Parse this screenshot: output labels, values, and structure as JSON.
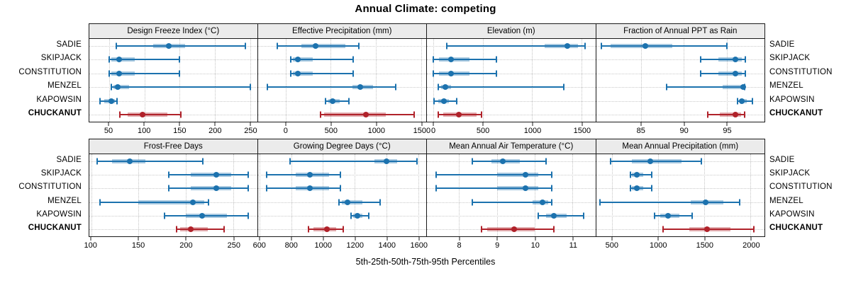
{
  "title": "Annual Climate: competing",
  "caption": "5th-25th-50th-75th-95th Percentiles",
  "sites": [
    "SADIE",
    "SKIPJACK",
    "CONSTITUTION",
    "MENZEL",
    "KAPOWSIN",
    "CHUCKANUT"
  ],
  "highlight_site": "CHUCKANUT",
  "colors": {
    "series_blue": "#1c72ae",
    "series_blue_band": "rgba(28,114,174,0.38)",
    "highlight_red": "#b0222a",
    "highlight_red_band": "rgba(176,34,42,0.38)",
    "strip_bg": "#ebebeb",
    "panel_border": "#1a1a1a",
    "grid": "#c6c6c6"
  },
  "chart_data": {
    "type": "scatter",
    "variant": "dot-whisker five-number summary (5th-25th-50th-75th-95th percentiles) trellis, 2 rows x 4 columns",
    "percentiles": [
      5,
      25,
      50,
      75,
      95
    ],
    "legend_position": "none",
    "grid": "dotted",
    "panels": [
      {
        "title": "Design Freeze Index (°C)",
        "row": 0,
        "ticks": [
          50,
          100,
          150,
          200,
          250
        ],
        "domain": [
          22,
          260
        ],
        "series": {
          "SADIE": [
            60,
            113,
            135,
            158,
            243
          ],
          "SKIPJACK": [
            50,
            53,
            64,
            86,
            150
          ],
          "CONSTITUTION": [
            50,
            53,
            64,
            86,
            150
          ],
          "MENZEL": [
            53,
            56,
            62,
            78,
            250
          ],
          "KAPOWSIN": [
            37,
            43,
            53,
            58,
            61
          ],
          "CHUCKANUT": [
            65,
            76,
            97,
            133,
            152
          ]
        }
      },
      {
        "title": "Effective Precipitation (mm)",
        "row": 0,
        "ticks": [
          0,
          500,
          1000,
          1500
        ],
        "domain": [
          -307,
          1556
        ],
        "series": {
          "SADIE": [
            -90,
            175,
            330,
            660,
            810
          ],
          "SKIPJACK": [
            55,
            85,
            140,
            300,
            750
          ],
          "CONSTITUTION": [
            55,
            85,
            140,
            300,
            750
          ],
          "MENZEL": [
            -200,
            740,
            830,
            970,
            1215
          ],
          "KAPOWSIN": [
            445,
            470,
            520,
            600,
            700
          ],
          "CHUCKANUT": [
            390,
            430,
            890,
            1110,
            1420
          ]
        }
      },
      {
        "title": "Elevation (m)",
        "row": 0,
        "ticks": [
          0,
          500,
          1000,
          1500
        ],
        "domain": [
          -65,
          1640
        ],
        "series": {
          "SADIE": [
            135,
            1125,
            1360,
            1465,
            1535
          ],
          "SKIPJACK": [
            0,
            60,
            180,
            365,
            640
          ],
          "CONSTITUTION": [
            0,
            60,
            180,
            365,
            640
          ],
          "MENZEL": [
            50,
            75,
            120,
            180,
            1320
          ],
          "KAPOWSIN": [
            10,
            50,
            105,
            155,
            235
          ],
          "CHUCKANUT": [
            48,
            100,
            255,
            440,
            490
          ]
        }
      },
      {
        "title": "Fraction of Annual PPT as Rain",
        "row": 0,
        "ticks": [
          85,
          90,
          95
        ],
        "domain": [
          79.8,
          99.4
        ],
        "series": {
          "SADIE": [
            80.4,
            81.5,
            85.5,
            88.7,
            95
          ],
          "SKIPJACK": [
            92,
            94,
            96,
            96.8,
            97.2
          ],
          "CONSTITUTION": [
            92,
            94,
            96,
            96.8,
            97.2
          ],
          "MENZEL": [
            88,
            94.5,
            96.9,
            97.0,
            97.1
          ],
          "KAPOWSIN": [
            96.3,
            96.5,
            96.8,
            97.3,
            98
          ],
          "CHUCKANUT": [
            92.8,
            94.2,
            96,
            96.7,
            97.1
          ]
        }
      },
      {
        "title": "Frost-Free Days",
        "row": 1,
        "ticks": [
          100,
          150,
          200,
          250
        ],
        "domain": [
          98,
          275
        ],
        "series": {
          "SADIE": [
            106,
            122,
            141,
            157,
            218
          ],
          "SKIPJACK": [
            182,
            205,
            232,
            248,
            266
          ],
          "CONSTITUTION": [
            182,
            205,
            232,
            248,
            266
          ],
          "MENZEL": [
            109,
            150,
            207,
            219,
            224
          ],
          "KAPOWSIN": [
            177,
            200,
            217,
            243,
            266
          ],
          "CHUCKANUT": [
            190,
            194,
            205,
            223,
            240
          ]
        }
      },
      {
        "title": "Growing Degree Days (°C)",
        "row": 1,
        "ticks": [
          600,
          800,
          1000,
          1200,
          1400,
          1600
        ],
        "domain": [
          590,
          1650
        ],
        "series": {
          "SADIE": [
            795,
            1325,
            1400,
            1465,
            1590
          ],
          "SKIPJACK": [
            645,
            830,
            920,
            1040,
            1110
          ],
          "CONSTITUTION": [
            645,
            830,
            920,
            1040,
            1110
          ],
          "MENZEL": [
            1100,
            1120,
            1155,
            1250,
            1360
          ],
          "KAPOWSIN": [
            1175,
            1190,
            1215,
            1250,
            1290
          ],
          "CHUCKANUT": [
            910,
            940,
            1025,
            1085,
            1130
          ]
        }
      },
      {
        "title": "Mean Annual Air Temperature (°C)",
        "row": 1,
        "ticks": [
          8,
          9,
          10,
          11
        ],
        "domain": [
          7.15,
          11.6
        ],
        "series": {
          "SADIE": [
            8.35,
            8.85,
            9.15,
            9.6,
            10.3
          ],
          "SKIPJACK": [
            7.4,
            9.0,
            9.75,
            10.1,
            10.45
          ],
          "CONSTITUTION": [
            7.4,
            9.0,
            9.75,
            10.1,
            10.45
          ],
          "MENZEL": [
            8.35,
            9.95,
            10.2,
            10.35,
            10.45
          ],
          "KAPOWSIN": [
            10.1,
            10.3,
            10.5,
            10.85,
            11.3
          ],
          "CHUCKANUT": [
            8.6,
            8.75,
            9.45,
            10.0,
            10.5
          ]
        }
      },
      {
        "title": "Mean Annual Precipitation (mm)",
        "row": 1,
        "ticks": [
          500,
          1000,
          1500,
          2000
        ],
        "domain": [
          330,
          2150
        ],
        "series": {
          "SADIE": [
            490,
            720,
            915,
            1250,
            1470
          ],
          "SKIPJACK": [
            705,
            720,
            770,
            840,
            935
          ],
          "CONSTITUTION": [
            705,
            720,
            770,
            840,
            935
          ],
          "MENZEL": [
            370,
            1350,
            1515,
            1705,
            1885
          ],
          "KAPOWSIN": [
            963,
            1020,
            1110,
            1230,
            1365
          ],
          "CHUCKANUT": [
            1055,
            1340,
            1530,
            1785,
            2035
          ]
        }
      }
    ]
  }
}
